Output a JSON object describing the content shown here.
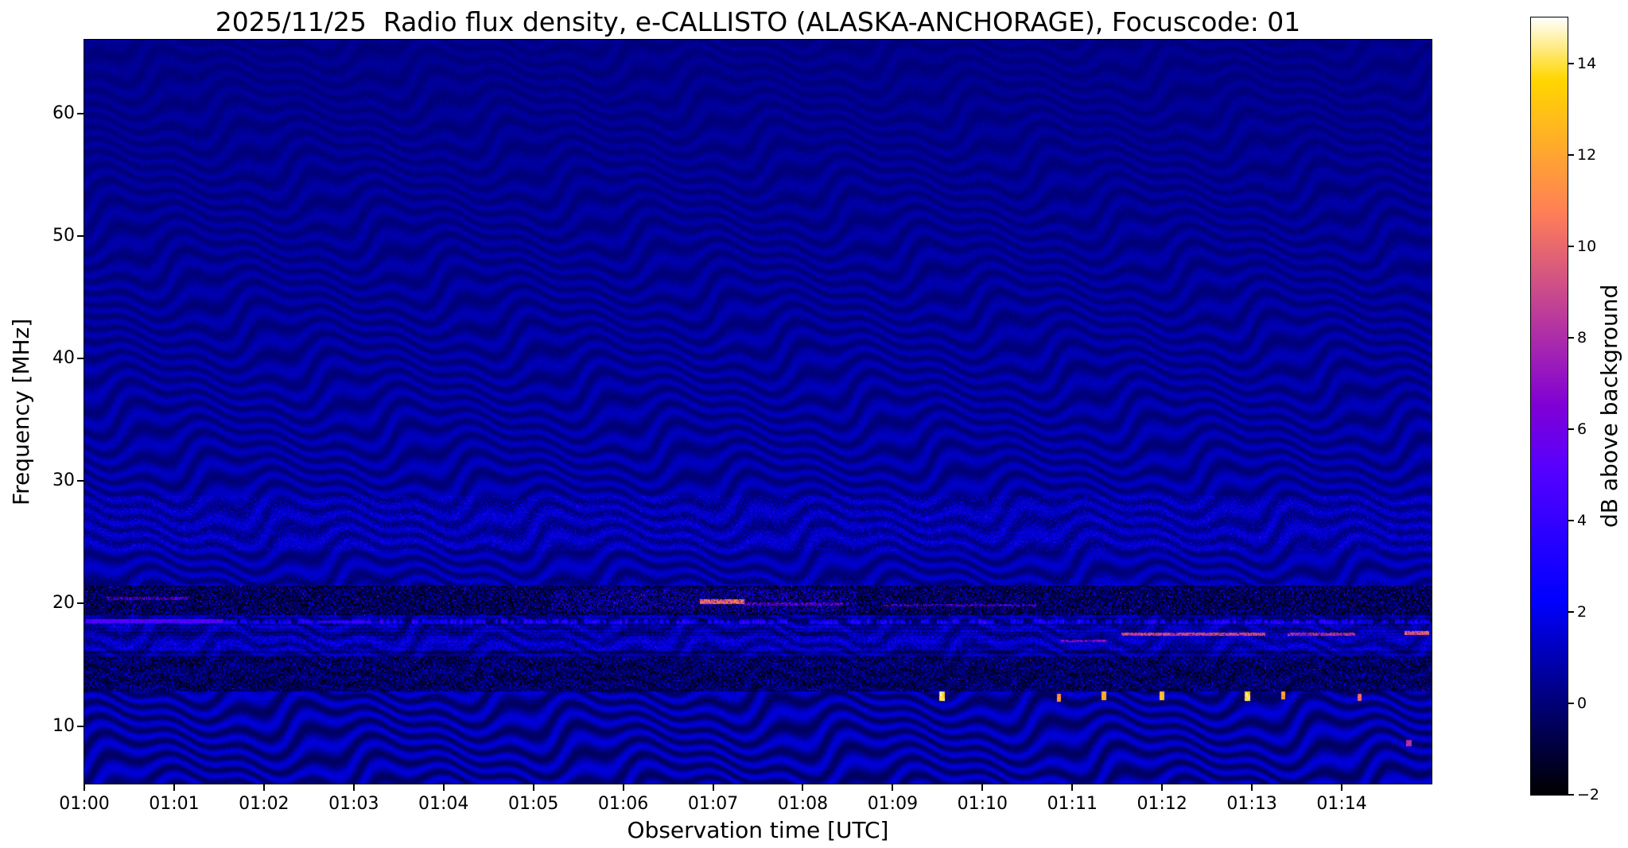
{
  "chart_data": {
    "type": "heatmap",
    "title": "2025/11/25  Radio flux density, e-CALLISTO (ALASKA-ANCHORAGE), Focuscode: 01",
    "xlabel": "Observation time [UTC]",
    "ylabel": "Frequency [MHz]",
    "colorbar_label": "dB above background",
    "colormap": "gnuplot2",
    "x_ticks": [
      "01:00",
      "01:01",
      "01:02",
      "01:03",
      "01:04",
      "01:05",
      "01:06",
      "01:07",
      "01:08",
      "01:09",
      "01:10",
      "01:11",
      "01:12",
      "01:13",
      "01:14"
    ],
    "x_range_minutes": [
      0,
      15
    ],
    "y_ticks": [
      {
        "value": 60,
        "label": "60"
      },
      {
        "value": 50,
        "label": "50"
      },
      {
        "value": 40,
        "label": "40"
      },
      {
        "value": 30,
        "label": "30"
      },
      {
        "value": 20,
        "label": "20"
      },
      {
        "value": 10,
        "label": "10"
      }
    ],
    "y_range_mhz": [
      5.3,
      66
    ],
    "value_range_db": [
      -2,
      15
    ],
    "colorbar_ticks": [
      {
        "value": 14,
        "label": "14"
      },
      {
        "value": 12,
        "label": "12"
      },
      {
        "value": 10,
        "label": "10"
      },
      {
        "value": 8,
        "label": "8"
      },
      {
        "value": 6,
        "label": "6"
      },
      {
        "value": 4,
        "label": "4"
      },
      {
        "value": 2,
        "label": "2"
      },
      {
        "value": 0,
        "label": "0"
      },
      {
        "value": -2,
        "label": "−2"
      }
    ],
    "render": {
      "background": {
        "base": 1.05,
        "slope_per_mhz": 0.012
      },
      "noise_amp": 0.7,
      "ripple": {
        "k": 4.6,
        "wobble1_amp": 5.5,
        "wobble1_period_min": 2.8,
        "wobble1_fslope": 0.42,
        "wobble2_amp": 2.2,
        "wobble2_period_min": 0.75,
        "wobble2_fslope": 0.13,
        "drift": 0.35,
        "amp_max": 1.0,
        "amp_min": 0.3,
        "amp_fade_start_mhz": 20,
        "amp_fade_per_mhz": 0.016,
        "low_boost_below_mhz": 13
      },
      "bands": {
        "speckle_25_29": {
          "f0": 24.3,
          "f1": 28.8,
          "prob": 0.2,
          "min_db": 0.6,
          "max_db": 2.6
        },
        "noisy_16_19": {
          "f0": 15.85,
          "f1": 18.95,
          "dim": 0.55,
          "min_db": 0.5,
          "max_db": 2.6
        },
        "dark_19_21": {
          "f0": 19.05,
          "f1": 21.45,
          "floor_db": -1.5,
          "speckle_prob": 0.38,
          "speckle_min": 1.2,
          "speckle_max": 4.0,
          "spark_prob": 0.015,
          "spark_min": 6,
          "spark_max": 9
        },
        "dark_13_16": {
          "f0": 12.85,
          "f1": 15.7,
          "floor_db": -1.1,
          "speckle_prob": 0.33,
          "speckle_min": 1.0,
          "speckle_max": 3.6,
          "spark_prob": 0.008,
          "spark_min": 5,
          "spark_max": 8
        },
        "faint_line": {
          "f0": 18.35,
          "f1": 18.75,
          "duty": 0.6,
          "min_db": 1.2,
          "max_db": 3.0
        }
      },
      "lines": [
        {
          "t0": 0.02,
          "t1": 1.55,
          "f": 18.55,
          "w": 0.3,
          "db": 5.2,
          "duty": 0.95
        },
        {
          "t0": 0.25,
          "t1": 1.15,
          "f": 20.4,
          "w": 0.25,
          "db": 6.5,
          "duty": 0.5
        },
        {
          "t0": 2.6,
          "t1": 3.2,
          "f": 18.5,
          "w": 0.25,
          "db": 4.2,
          "duty": 0.8
        },
        {
          "t0": 5.2,
          "t1": 8.6,
          "f": 20.2,
          "w": 1.8,
          "db": 4.0,
          "duty": 0.18
        },
        {
          "t0": 6.85,
          "t1": 7.35,
          "f": 20.15,
          "w": 0.4,
          "db": 10.5,
          "duty": 0.92
        },
        {
          "t0": 7.35,
          "t1": 8.45,
          "f": 19.95,
          "w": 0.25,
          "db": 7.0,
          "duty": 0.55
        },
        {
          "t0": 8.9,
          "t1": 10.6,
          "f": 19.85,
          "w": 0.22,
          "db": 6.5,
          "duty": 0.45
        },
        {
          "t0": 10.85,
          "t1": 11.4,
          "f": 16.95,
          "w": 0.22,
          "db": 7.5,
          "duty": 0.7
        },
        {
          "t0": 11.55,
          "t1": 13.15,
          "f": 17.5,
          "w": 0.25,
          "db": 9.5,
          "duty": 0.88
        },
        {
          "t0": 13.4,
          "t1": 14.15,
          "f": 17.5,
          "w": 0.25,
          "db": 8.8,
          "duty": 0.8
        },
        {
          "t0": 14.7,
          "t1": 14.97,
          "f": 17.6,
          "w": 0.35,
          "db": 10.0,
          "duty": 0.95
        }
      ],
      "points": [
        {
          "t": 9.55,
          "f": 12.45,
          "dt": 0.055,
          "df": 0.75,
          "db": 14.5
        },
        {
          "t": 10.85,
          "f": 12.3,
          "dt": 0.05,
          "df": 0.6,
          "db": 12.0
        },
        {
          "t": 11.35,
          "f": 12.45,
          "dt": 0.05,
          "df": 0.7,
          "db": 13.0
        },
        {
          "t": 12.0,
          "f": 12.45,
          "dt": 0.05,
          "df": 0.7,
          "db": 13.5
        },
        {
          "t": 12.95,
          "f": 12.45,
          "dt": 0.06,
          "df": 0.8,
          "db": 14.8
        },
        {
          "t": 13.35,
          "f": 12.5,
          "dt": 0.05,
          "df": 0.65,
          "db": 12.5
        },
        {
          "t": 14.2,
          "f": 12.35,
          "dt": 0.045,
          "df": 0.55,
          "db": 10.5
        },
        {
          "t": 14.75,
          "f": 8.6,
          "dt": 0.06,
          "df": 0.5,
          "db": 8.5
        }
      ]
    }
  }
}
